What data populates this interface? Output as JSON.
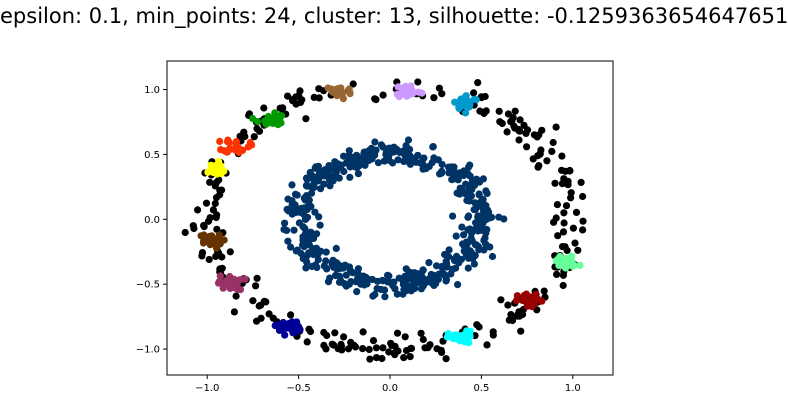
{
  "chart_data": {
    "type": "scatter",
    "title": "epsilon: 0.1, min_points: 24, cluster: 13, silhouette: -0.1259363654647651",
    "xlabel": "",
    "ylabel": "",
    "xlim": [
      -1.22,
      1.22
    ],
    "ylim": [
      -1.2,
      1.22
    ],
    "xticks": [
      -1.0,
      -0.5,
      0.0,
      0.5,
      1.0
    ],
    "yticks": [
      -1.0,
      -0.5,
      0.0,
      0.5,
      1.0
    ],
    "xtick_labels": [
      "−1.0",
      "−0.5",
      "0.0",
      "0.5",
      "1.0"
    ],
    "ytick_labels": [
      "−1.0",
      "−0.5",
      "0.0",
      "0.5",
      "1.0"
    ],
    "grid": false,
    "legend": "none",
    "description_of_data": "Two concentric noisy circles; inner circle (radius ~0.5) is one cluster, outer circle (radius ~1.0) mostly noise (black) with 12 small colored clusters.",
    "inner_ring": {
      "color": "#003366",
      "radius": 0.5,
      "count": 500
    },
    "noise": {
      "color": "#000000",
      "radius": 1.0,
      "count": 300
    },
    "clusters": [
      {
        "color": "#996633",
        "center": [
          -0.28,
          0.98
        ],
        "count": 26
      },
      {
        "color": "#cc99ff",
        "center": [
          0.1,
          0.99
        ],
        "count": 26
      },
      {
        "color": "#0099cc",
        "center": [
          0.42,
          0.9
        ],
        "count": 26
      },
      {
        "color": "#009900",
        "center": [
          -0.65,
          0.77
        ],
        "count": 26
      },
      {
        "color": "#ff3300",
        "center": [
          -0.84,
          0.57
        ],
        "count": 26
      },
      {
        "color": "#ffff00",
        "center": [
          -0.96,
          0.38
        ],
        "count": 26
      },
      {
        "color": "#663300",
        "center": [
          -0.99,
          -0.17
        ],
        "count": 26
      },
      {
        "color": "#993366",
        "center": [
          -0.87,
          -0.49
        ],
        "count": 26
      },
      {
        "color": "#000099",
        "center": [
          -0.56,
          -0.83
        ],
        "count": 26
      },
      {
        "color": "#00ffff",
        "center": [
          0.39,
          -0.92
        ],
        "count": 26
      },
      {
        "color": "#990000",
        "center": [
          0.77,
          -0.63
        ],
        "count": 26
      },
      {
        "color": "#66ff99",
        "center": [
          0.96,
          -0.33
        ],
        "count": 26
      }
    ]
  }
}
